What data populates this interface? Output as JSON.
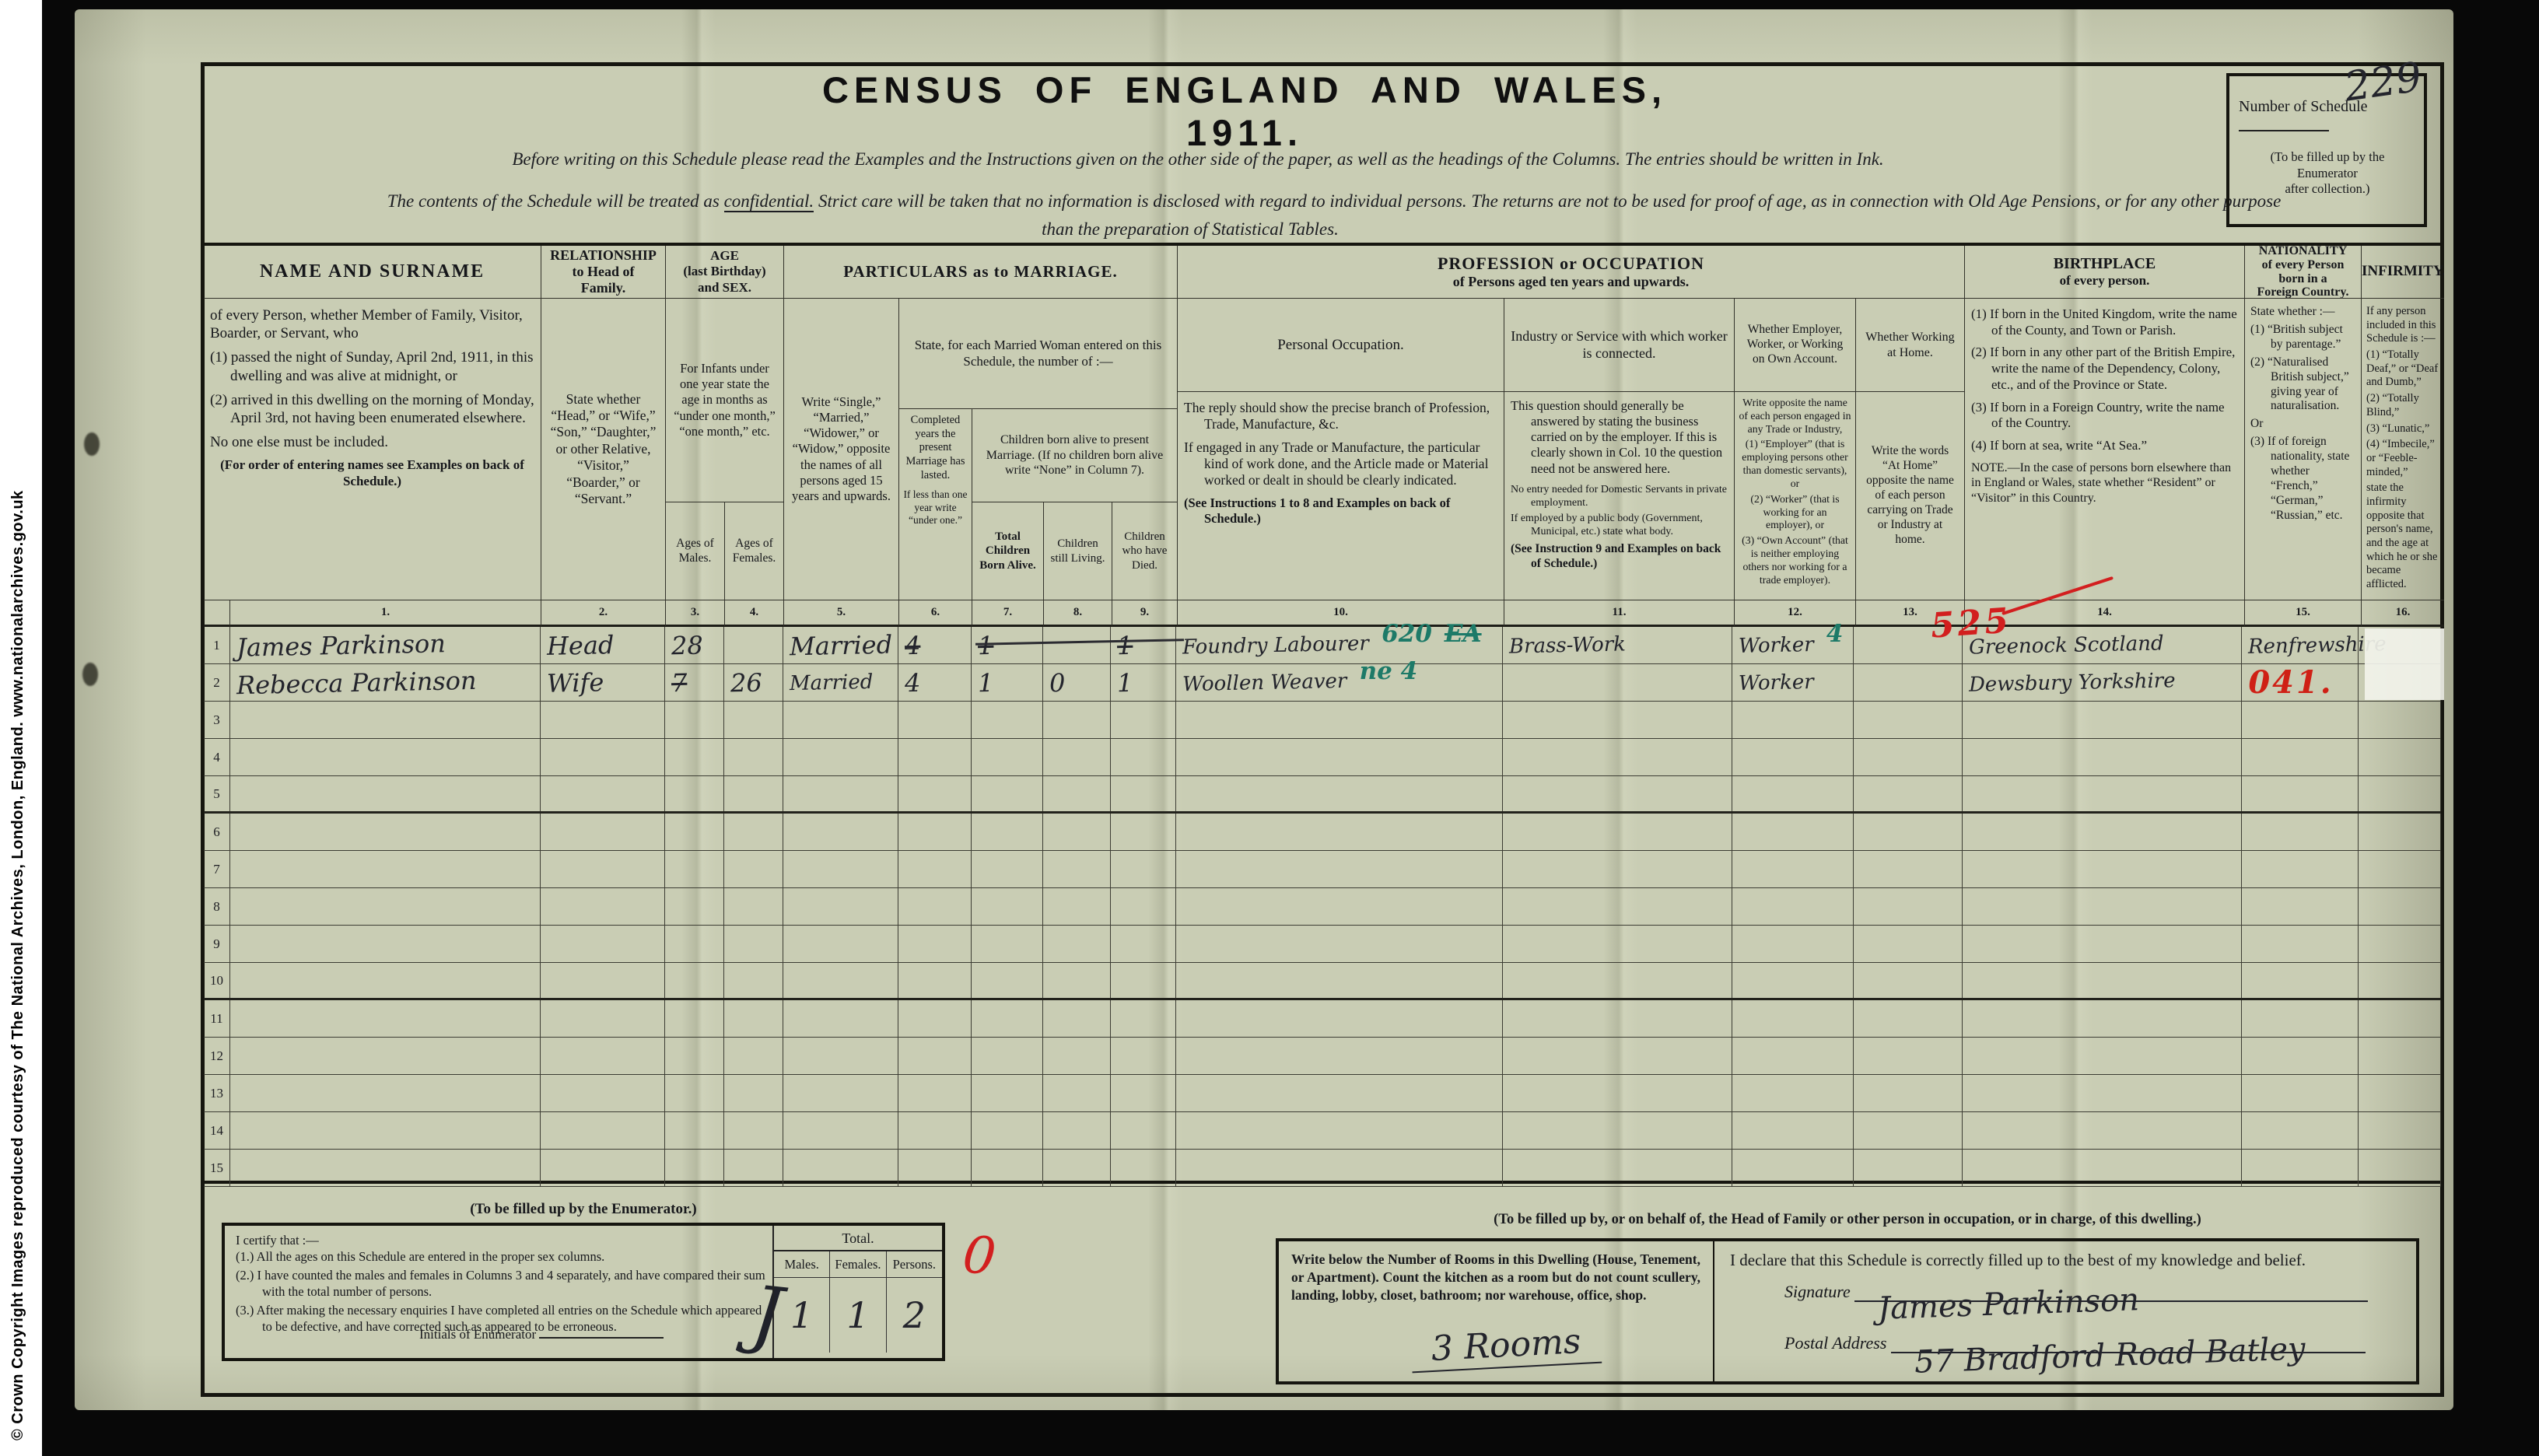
{
  "sidebar": {
    "copyright": "© Crown Copyright Images reproduced courtesy of The National Archives, London, England. www.nationalarchives.gov.uk"
  },
  "header": {
    "title": "CENSUS  OF  ENGLAND  AND  WALES,  1911.",
    "intro": "Before writing on this Schedule please read the Examples and the Instructions given on the other side of the paper, as well as the headings of the Columns.   The entries should be written in Ink.",
    "conf_prefix": "The contents of the Schedule will be treated as ",
    "conf_word": "confidential.",
    "conf_rest": "   Strict care will be taken that no information is disclosed with regard to individual persons.   The returns are not to be used for proof of age, as in connection with Old Age Pensions, or for any other purpose",
    "conf_line2": "than the preparation of Statistical Tables.",
    "schedule_box": {
      "label": "Number of Schedule",
      "value": "229",
      "note1": "(To be filled up by the Enumerator",
      "note2": "after collection.)"
    }
  },
  "annotations": {
    "red_code_525": "525",
    "red_zero": "0"
  },
  "table": {
    "colnums": [
      "1.",
      "2.",
      "3.",
      "4.",
      "5.",
      "6.",
      "7.",
      "8.",
      "9.",
      "10.",
      "11.",
      "12.",
      "13.",
      "14.",
      "15.",
      "16."
    ],
    "h": {
      "name_title": "NAME  AND  SURNAME",
      "name_body": [
        "of every Person, whether Member of Family, Visitor, Boarder, or Servant, who",
        "(1) passed the night of Sunday, April 2nd, 1911, in this dwelling and was alive at midnight, or",
        "(2) arrived in this dwelling on the morning of Monday, April 3rd, not having been enumerated elsewhere.",
        "No one else must be included.",
        "(For order of entering names see Examples on back of Schedule.)"
      ],
      "rel_title": [
        "RELATIONSHIP",
        "to Head of",
        "Family."
      ],
      "rel_body": "State whether “Head,” or “Wife,” “Son,” “Daughter,” or other Relative, “Visitor,” “Boarder,” or “Servant.”",
      "age_title": [
        "AGE",
        "(last Birthday)",
        "and SEX."
      ],
      "age_body": "For Infants under one year state the age in months as “under one month,” “one month,” etc.",
      "age_m": "Ages of Males.",
      "age_f": "Ages of Females.",
      "marr_title": "PARTICULARS  as to  MARRIAGE.",
      "marr_single": "Write “Single,” “Married,” “Widower,” or “Widow,” opposite the names of all persons aged 15 years and upwards.",
      "marr_state": "State, for each Married Woman entered on this Schedule, the number of :—",
      "marr_years1": "Com­pleted years the present Marriage has lasted.",
      "marr_years2": "If less than one year write “under one.”",
      "marr_children": "Children born alive to present Marriage. (If no children born alive write “None” in Column 7).",
      "marr_born": "Total Children Born Alive.",
      "marr_living": "Children still Living.",
      "marr_died": "Children who have Died.",
      "prof_title1": "PROFESSION  or  OCCUPATION",
      "prof_title2": "of Persons aged ten years and upwards.",
      "occ_head": "Personal Occupation.",
      "occ_body": [
        "The reply should show the precise branch of Profession, Trade, Manufacture, &c.",
        "If engaged in any Trade or Manufacture, the particular kind of work done, and the Article made or Material worked or dealt in should be clearly indicated.",
        "(See Instructions 1 to 8 and Examples on back of Schedule.)"
      ],
      "ind_head": "Industry or Service with which worker is connected.",
      "ind_body": [
        "This question should gener­ally be answered by stating the business carried on by the employer.  If this is clearly shown in Col. 10 the question need not be answered here.",
        "No entry needed for Domestic Ser­vants in private employment.",
        "If employed by a public body (Government, Municipal, etc.) state what body.",
        "(See Instruction 9 and Exam­ples on back of Schedule.)"
      ],
      "emp_head": "Whether Employer, Worker, or Working on Own Account.",
      "emp_body": [
        "Write opposite the name of each person engaged in any Trade or Industry,",
        "(1) “Employer” (that is employing persons other than domestic servants), or",
        "(2) “Worker” (that is working for an employer), or",
        "(3) “Own Account” (that is neither employing others nor working for a trade employer)."
      ],
      "home_head": "Whether Working at Home.",
      "home_body": "Write the words “At Home” opposite the name of each person carrying on Trade or Industry at home.",
      "birth_title": [
        "BIRTHPLACE",
        "of every person."
      ],
      "birth_body": [
        "(1) If born in the United King­dom, write the name of the County, and Town or Parish.",
        "(2) If born in any other part of the British Empire, write the name of the Dependency, Colony, etc., and of the Province or State.",
        "(3) If born in a Foreign Country, write the name of the Country.",
        "(4) If born at sea, write “At Sea.”",
        "NOTE.—In the case of persons born elsewhere than in England or Wales, state whether “Resident” or “Visitor” in this Country."
      ],
      "nat_title": [
        "NATIONALITY",
        "of every Person",
        "born in a",
        "Foreign Country."
      ],
      "nat_body": [
        "State whether :—",
        "(1) “British sub­ject by parent­age.”",
        "(2) “Naturalised British sub­ject,” giving year of natu­ralisation.",
        "Or",
        "(3) If of foreign nationality, state whether “French,” “German,” “Russian,” etc."
      ],
      "inf_title": "INFIRMITY.",
      "inf_body": [
        "If any person included in this Schedule is :—",
        "(1) “Totally Deaf,” or “Deaf and Dumb,”",
        "(2) “Totally Blind,”",
        "(3) “Lunatic,”",
        "(4) “Imbecile,” or “Feeble­minded,”",
        "state the infirmity opposite that per­son's name, and the age at which he or she became afflicted."
      ]
    },
    "rows": [
      {
        "num": "1",
        "cells": {
          "c1": [
            [
              "James Parkinson",
              "hw"
            ]
          ],
          "c2": [
            [
              "Head",
              "hw"
            ]
          ],
          "c3": [
            [
              "28",
              "hw"
            ]
          ],
          "c5": [
            [
              "Married",
              "hw"
            ]
          ],
          "c6": [
            [
              "4",
              "hw strike"
            ]
          ],
          "c7": [
            [
              "1",
              "hw strike"
            ]
          ],
          "c9": [
            [
              "1",
              "hw strike"
            ]
          ],
          "c10": [
            [
              "Foundry Labourer",
              "hw sm"
            ],
            [
              "620",
              "green"
            ],
            [
              "EA",
              "green strike"
            ]
          ],
          "c11": [
            [
              "Brass-Work",
              "hw sm"
            ]
          ],
          "c12": [
            [
              "Worker",
              "hw sm"
            ],
            [
              "4",
              "green"
            ]
          ],
          "c14": [
            [
              "Greenock Scotland",
              "hw sm"
            ]
          ],
          "c15": [
            [
              "Renfrewshire",
              "hw sm"
            ]
          ]
        }
      },
      {
        "num": "2",
        "cells": {
          "c1": [
            [
              "Rebecca Parkinson",
              "hw"
            ]
          ],
          "c2": [
            [
              "Wife",
              "hw"
            ]
          ],
          "c3": [
            [
              "7",
              "hw strike"
            ]
          ],
          "c4": [
            [
              "26",
              "hw"
            ]
          ],
          "c5": [
            [
              "Married",
              "hw sm"
            ]
          ],
          "c6": [
            [
              "4",
              "hw"
            ]
          ],
          "c7": [
            [
              "1",
              "hw"
            ]
          ],
          "c8": [
            [
              "0",
              "hw"
            ]
          ],
          "c9": [
            [
              "1",
              "hw"
            ]
          ],
          "c10": [
            [
              "Woollen Weaver",
              "hw sm"
            ],
            [
              "ne 4",
              "green"
            ]
          ],
          "c12": [
            [
              "Worker",
              "hw sm"
            ]
          ],
          "c14": [
            [
              "Dewsbury Yorkshire",
              "hw sm"
            ]
          ],
          "c15": [
            [
              "041.",
              "red bigred"
            ]
          ]
        }
      },
      {
        "num": "3",
        "cells": {}
      },
      {
        "num": "4",
        "cells": {}
      },
      {
        "num": "5",
        "cells": {}
      },
      {
        "num": "6",
        "cells": {}
      },
      {
        "num": "7",
        "cells": {}
      },
      {
        "num": "8",
        "cells": {}
      },
      {
        "num": "9",
        "cells": {}
      },
      {
        "num": "10",
        "cells": {}
      },
      {
        "num": "11",
        "cells": {}
      },
      {
        "num": "12",
        "cells": {}
      },
      {
        "num": "13",
        "cells": {}
      },
      {
        "num": "14",
        "cells": {}
      },
      {
        "num": "15",
        "cells": {}
      }
    ]
  },
  "enumerator_box": {
    "heading": "(To be filled up by the Enumerator.)",
    "cert_intro": "I certify that :—",
    "items": [
      "(1.) All the ages on this Schedule are entered in the proper sex columns.",
      "(2.) I have counted the males and females in Columns 3 and 4 separately, and have compared their sum with the total number of persons.",
      "(3.) After making the necessary enquiries I have completed all entries on the Schedule which appeared to be defective, and have corrected such as appeared to be erroneous."
    ],
    "initials_label": "Initials of Enumerator",
    "initials_value": "J",
    "total_label": "Total.",
    "males_label": "Males.",
    "females_label": "Females.",
    "persons_label": "Persons.",
    "males_value": "1",
    "females_value": "1",
    "persons_value": "2"
  },
  "dwelling_box": {
    "heading": "(To be filled up by, or on behalf of, the Head of Family or other person in occupation, or in charge, of this dwelling.)",
    "rooms_text": "Write below the Number of Rooms in this Dwelling (House, Tenement, or Apartment).  Count the kitchen as a room but do not count scullery, landing, lobby, closet, bathroom; nor warehouse, office, shop.",
    "rooms_value": "3 Rooms",
    "declaration": "I declare that this Schedule is correctly filled up to the best of my knowledge and belief.",
    "signature_label": "Signature",
    "signature_value": "James Parkinson",
    "postal_label": "Postal Address",
    "postal_value": "57 Bradford Road Batley"
  }
}
